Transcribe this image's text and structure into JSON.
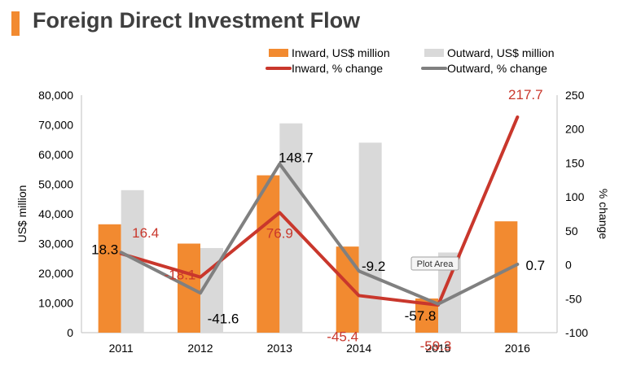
{
  "header": {
    "title": "Foreign Direct Investment Flow"
  },
  "colors": {
    "accent": "#f28a30",
    "inward_bar": "#f28a30",
    "outward_bar": "#d9d9d9",
    "inward_line": "#c9372c",
    "outward_line": "#808080"
  },
  "tooltip": {
    "text": "Plot Area"
  },
  "chart_data": {
    "type": "bar",
    "title": "Foreign Direct Investment Flow",
    "categories": [
      "2011",
      "2012",
      "2013",
      "2014",
      "2015",
      "2016"
    ],
    "ylabel": "US$ million",
    "y2label": "% change",
    "ylim": [
      0,
      80000
    ],
    "y2lim": [
      -100,
      250
    ],
    "yticks": [
      "0",
      "10,000",
      "20,000",
      "30,000",
      "40,000",
      "50,000",
      "60,000",
      "70,000",
      "80,000"
    ],
    "y2ticks": [
      "-100",
      "-50",
      "0",
      "50",
      "100",
      "150",
      "200",
      "250"
    ],
    "legend_position": "top-right",
    "bars": [
      {
        "name": "Inward, US$ million",
        "values": [
          36500,
          30000,
          53000,
          29000,
          11500,
          37500
        ]
      },
      {
        "name": "Outward, US$ million",
        "values": [
          48000,
          28500,
          70500,
          64000,
          27000,
          null
        ]
      }
    ],
    "lines": [
      {
        "name": "Inward, % change",
        "values": [
          16.4,
          -18.1,
          76.9,
          -45.4,
          -59.3,
          217.7
        ],
        "labels": [
          "16.4",
          "-18.1",
          "76.9",
          "-45.4",
          "-59.3",
          "217.7"
        ]
      },
      {
        "name": "Outward, % change",
        "values": [
          18.3,
          -41.6,
          148.7,
          -9.2,
          -57.8,
          0.7
        ],
        "labels": [
          "18.3",
          "-41.6",
          "148.7",
          "-9.2",
          "-57.8",
          "0.7"
        ]
      }
    ]
  }
}
